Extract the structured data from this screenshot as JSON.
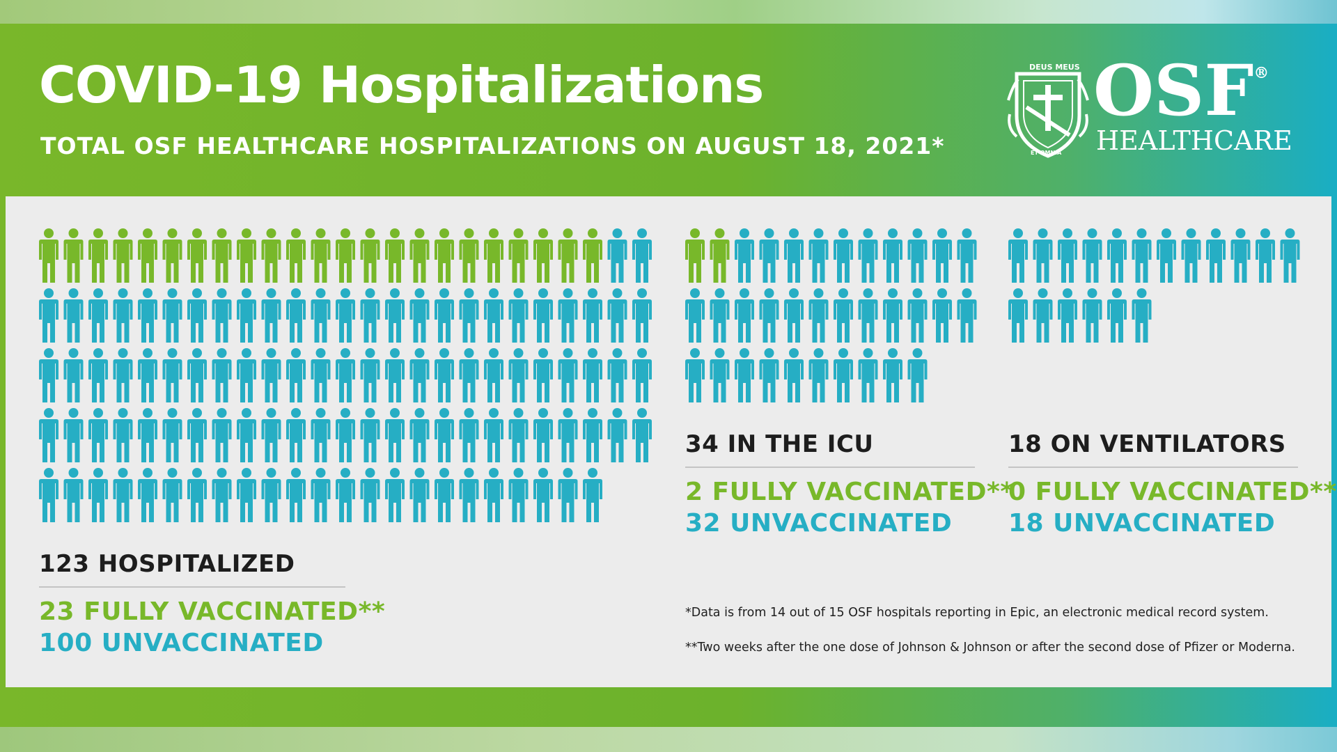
{
  "header": {
    "title": "COVID-19 Hospitalizations",
    "subtitle": "TOTAL OSF HEALTHCARE HOSPITALIZATIONS ON AUGUST 18, 2021*"
  },
  "logo": {
    "name": "OSF",
    "registered": "®",
    "sub": "HEALTHCARE",
    "crest_text_top": "DEUS MEUS",
    "crest_text_bottom": "ET OMNIA"
  },
  "colors": {
    "vaccinated": "#78b82a",
    "unvaccinated": "#26aec4",
    "text": "#1d1d1d"
  },
  "icons": {
    "person": "person-icon"
  },
  "chart_data": [
    {
      "type": "pictogram",
      "name": "hospitalized",
      "total": 123,
      "label": "123 HOSPITALIZED",
      "series": [
        {
          "name": "FULLY VACCINATED",
          "value": 23,
          "label": "23 FULLY VACCINATED**"
        },
        {
          "name": "UNVACCINATED",
          "value": 100,
          "label": "100 UNVACCINATED"
        }
      ],
      "icons_per_row": 25
    },
    {
      "type": "pictogram",
      "name": "icu",
      "total": 34,
      "label": "34 IN THE ICU",
      "series": [
        {
          "name": "FULLY VACCINATED",
          "value": 2,
          "label": "2 FULLY VACCINATED**"
        },
        {
          "name": "UNVACCINATED",
          "value": 32,
          "label": "32 UNVACCINATED"
        }
      ],
      "icons_per_row": 12
    },
    {
      "type": "pictogram",
      "name": "ventilators",
      "total": 18,
      "label": "18 ON VENTILATORS",
      "series": [
        {
          "name": "FULLY VACCINATED",
          "value": 0,
          "label": "0 FULLY VACCINATED**"
        },
        {
          "name": "UNVACCINATED",
          "value": 18,
          "label": "18 UNVACCINATED"
        }
      ],
      "icons_per_row": 12
    }
  ],
  "footnotes": {
    "note1": "*Data is from 14 out of 15 OSF hospitals reporting in Epic, an electronic medical record system.",
    "note2": "**Two weeks after the one dose of Johnson & Johnson or after the second dose of Pfizer or Moderna."
  }
}
